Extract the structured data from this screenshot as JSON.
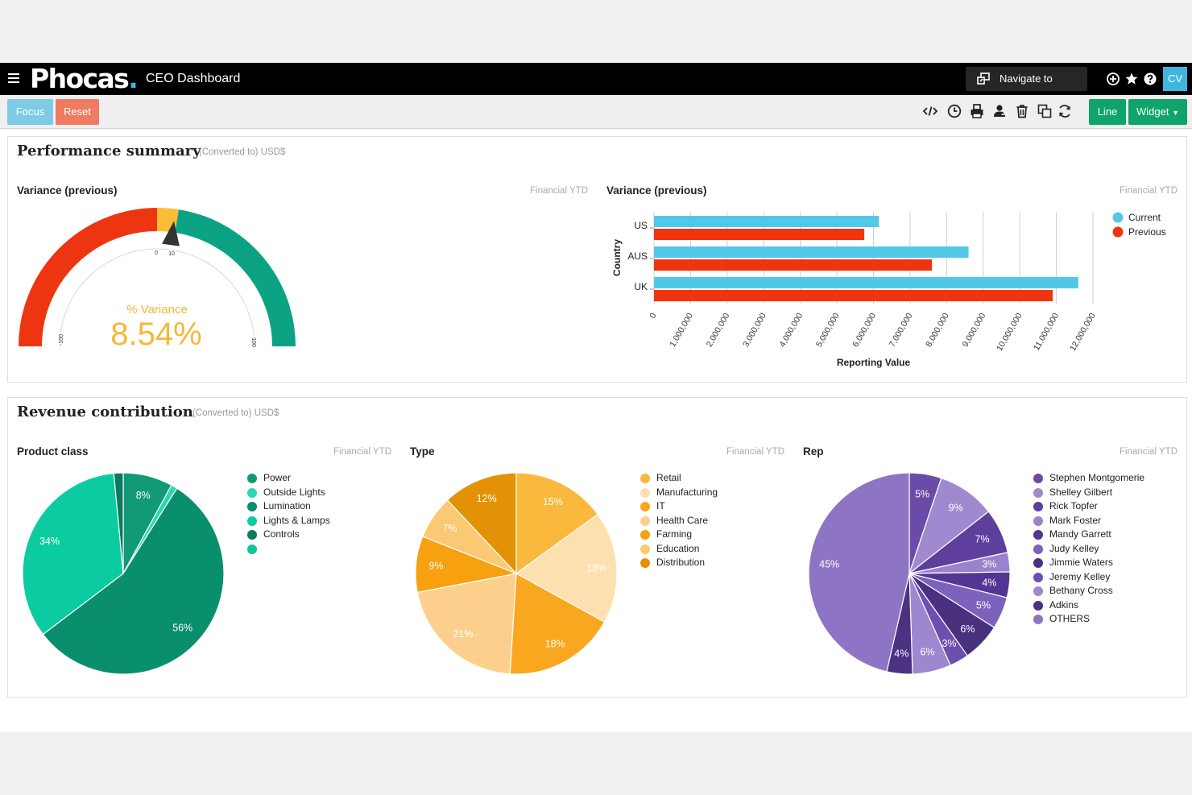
{
  "app": {
    "title": "CEO Dashboard",
    "logo_text": "Phocas",
    "user_initials": "CV"
  },
  "topbar": {
    "navigate_label": "Navigate to",
    "icons": [
      "menu-icon",
      "navigate-icon",
      "add-circle-icon",
      "star-icon",
      "help-icon"
    ]
  },
  "toolbar": {
    "focus_label": "Focus",
    "reset_label": "Reset",
    "line_label": "Line",
    "widget_label": "Widget",
    "icons": [
      "code-icon",
      "clock-icon",
      "print-icon",
      "share-user-icon",
      "trash-icon",
      "copy-icon",
      "refresh-icon"
    ]
  },
  "colors": {
    "brand_blue": "#3fb6e0",
    "green_button": "#0ea46c",
    "focus": "#7ecbe6",
    "reset": "#f07a62",
    "gauge_red": "#ee3511",
    "gauge_yellow": "#fbbd36",
    "gauge_green": "#0ba383",
    "bar_current": "#52c8e8",
    "bar_previous": "#ee3510"
  },
  "performance": {
    "title": "Performance summary",
    "note": "(Converted to) USD$",
    "gauge": {
      "title": "Variance (previous)",
      "period": "Financial YTD",
      "label": "% Variance",
      "value_text": "8.54%",
      "value": 8.54,
      "min_label": "-100",
      "max_label": "100",
      "tick_labels": [
        "0",
        "10"
      ]
    },
    "bar": {
      "title": "Variance (previous)",
      "period": "Financial YTD"
    }
  },
  "revenue": {
    "title": "Revenue contribution",
    "note": "(Converted to) USD$",
    "product_class": {
      "title": "Product class",
      "period": "Financial YTD"
    },
    "type": {
      "title": "Type",
      "period": "Financial YTD"
    },
    "rep": {
      "title": "Rep",
      "period": "Financial YTD"
    }
  },
  "chart_data": [
    {
      "type": "bar",
      "orientation": "horizontal",
      "title": "Variance (previous)",
      "categories": [
        "US",
        "AUS",
        "UK"
      ],
      "series": [
        {
          "name": "Current",
          "color": "#52c8e8",
          "values": [
            6150000,
            8600000,
            11600000
          ]
        },
        {
          "name": "Previous",
          "color": "#ee3510",
          "values": [
            5750000,
            7600000,
            10900000
          ]
        }
      ],
      "xlabel": "Reporting Value",
      "ylabel": "Country",
      "xlim": [
        0,
        12000000
      ],
      "xticks": [
        "0",
        "1,000,000",
        "2,000,000",
        "3,000,000",
        "4,000,000",
        "5,000,000",
        "6,000,000",
        "7,000,000",
        "8,000,000",
        "9,000,000",
        "10,000,000",
        "11,000,000",
        "12,000,000"
      ],
      "grid": true,
      "legend": "top-right"
    },
    {
      "type": "pie",
      "title": "Product class",
      "slices": [
        {
          "name": "Power",
          "value": 8,
          "label": "8%",
          "color": "#129a77"
        },
        {
          "name": "Outside Lights",
          "value": 1,
          "label": "",
          "color": "#29d8b0"
        },
        {
          "name": "Lumination",
          "value": 56,
          "label": "56%",
          "color": "#0a8f6c"
        },
        {
          "name": "Lights & Lamps",
          "value": 34,
          "label": "34%",
          "color": "#0bcca0"
        },
        {
          "name": "Controls",
          "value": 1.5,
          "label": "",
          "color": "#0c7a5d"
        },
        {
          "name": "",
          "value": 0,
          "label": "",
          "color": "#12c49b"
        }
      ],
      "legend": "right"
    },
    {
      "type": "pie",
      "title": "Type",
      "slices": [
        {
          "name": "Retail",
          "value": 15,
          "label": "15%",
          "color": "#fab93c"
        },
        {
          "name": "Manufacturing",
          "value": 18,
          "label": "18%",
          "color": "#fde0b0"
        },
        {
          "name": "IT",
          "value": 18,
          "label": "18%",
          "color": "#f9a71e"
        },
        {
          "name": "Health Care",
          "value": 21,
          "label": "21%",
          "color": "#fcd08c"
        },
        {
          "name": "Farming",
          "value": 9,
          "label": "9%",
          "color": "#f7a010"
        },
        {
          "name": "Education",
          "value": 7,
          "label": "7%",
          "color": "#fbc873"
        },
        {
          "name": "Distribution",
          "value": 12,
          "label": "12%",
          "color": "#e49205"
        }
      ],
      "legend": "right"
    },
    {
      "type": "pie",
      "title": "Rep",
      "slices": [
        {
          "name": "Stephen Montgomerie",
          "value": 5,
          "label": "5%",
          "color": "#6a4ba8"
        },
        {
          "name": "Shelley Gilbert",
          "value": 9,
          "label": "9%",
          "color": "#9f8ad0"
        },
        {
          "name": "Rick Topfer",
          "value": 7,
          "label": "7%",
          "color": "#5e3f9e"
        },
        {
          "name": "Mark Foster",
          "value": 3,
          "label": "3%",
          "color": "#9a82cc"
        },
        {
          "name": "Mandy Garrett",
          "value": 4,
          "label": "4%",
          "color": "#533693"
        },
        {
          "name": "Judy Kelley",
          "value": 5,
          "label": "5%",
          "color": "#7d62bd"
        },
        {
          "name": "Jimmie Waters",
          "value": 6,
          "label": "6%",
          "color": "#4a3180"
        },
        {
          "name": "Jeremy Kelley",
          "value": 3,
          "label": "3%",
          "color": "#6c4fb0"
        },
        {
          "name": "Bethany Cross",
          "value": 6,
          "label": "6%",
          "color": "#9d88cf"
        },
        {
          "name": "Adkins",
          "value": 4,
          "label": "4%",
          "color": "#4b3282"
        },
        {
          "name": "OTHERS",
          "value": 45,
          "label": "45%",
          "color": "#8e74c4"
        }
      ],
      "legend": "right"
    }
  ]
}
